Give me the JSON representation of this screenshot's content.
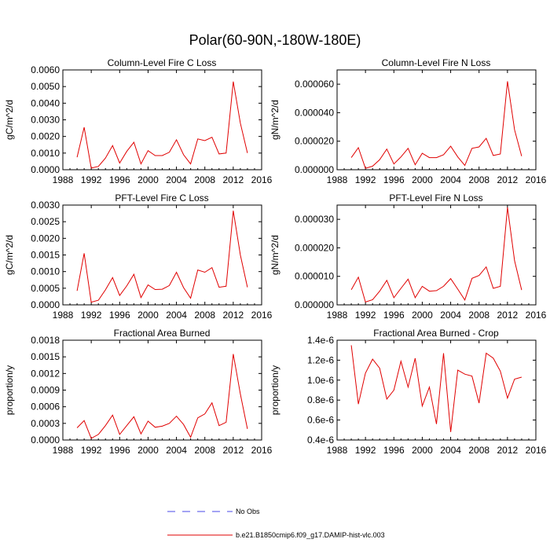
{
  "figure_title": "Polar(60-90N,-180W-180E)",
  "legend": {
    "entries": [
      {
        "label": "No Obs",
        "color": "#4a4ae8",
        "style": "dashed"
      },
      {
        "label": "b.e21.B1850cmip6.f09_g17.DAMIP-hist-vlc.003",
        "color": "#e00000",
        "style": "solid"
      }
    ]
  },
  "line_color": "#e00000",
  "chart_data": [
    {
      "type": "line",
      "title": "Column-Level Fire C Loss",
      "ylabel": "gC/m^2/d",
      "xlabel": "",
      "xlim": [
        1988,
        2016
      ],
      "xticks": [
        "1988",
        "1992",
        "1996",
        "2000",
        "2004",
        "2008",
        "2012",
        "2016"
      ],
      "ylim": [
        0,
        0.006
      ],
      "yticks": [
        "0.0000",
        "0.0010",
        "0.0020",
        "0.0030",
        "0.0040",
        "0.0050",
        "0.0060"
      ],
      "series": [
        {
          "name": "b.e21.B1850cmip6.f09_g17.DAMIP-hist-vlc.003",
          "x": [
            1990,
            1991,
            1992,
            1993,
            1994,
            1995,
            1996,
            1997,
            1998,
            1999,
            2000,
            2001,
            2002,
            2003,
            2004,
            2005,
            2006,
            2007,
            2008,
            2009,
            2010,
            2011,
            2012,
            2013,
            2014
          ],
          "values": [
            0.00075,
            0.00255,
            0.0001,
            0.0002,
            0.0007,
            0.00145,
            0.0004,
            0.0011,
            0.00165,
            0.00035,
            0.00115,
            0.00085,
            0.00085,
            0.00105,
            0.0018,
            0.0009,
            0.00035,
            0.00185,
            0.00175,
            0.00195,
            0.00095,
            0.001,
            0.0053,
            0.0028,
            0.001
          ]
        }
      ]
    },
    {
      "type": "line",
      "title": "Column-Level Fire N Loss",
      "ylabel": "gN/m^2/d",
      "xlabel": "",
      "xlim": [
        1988,
        2016
      ],
      "xticks": [
        "1988",
        "1992",
        "1996",
        "2000",
        "2004",
        "2008",
        "2012",
        "2016"
      ],
      "ylim": [
        0,
        7e-05
      ],
      "yticks": [
        "0.000000",
        "0.000020",
        "0.000040",
        "0.000060"
      ],
      "ytick_values": [
        0,
        2e-05,
        4e-05,
        6e-05
      ],
      "series": [
        {
          "name": "b.e21.B1850cmip6.f09_g17.DAMIP-hist-vlc.003",
          "x": [
            1990,
            1991,
            1992,
            1993,
            1994,
            1995,
            1996,
            1997,
            1998,
            1999,
            2000,
            2001,
            2002,
            2003,
            2004,
            2005,
            2006,
            2007,
            2008,
            2009,
            2010,
            2011,
            2012,
            2013,
            2014
          ],
          "values": [
            8.5e-06,
            1.55e-05,
            1e-06,
            2.5e-06,
            7e-06,
            1.45e-05,
            4e-06,
            9e-06,
            1.5e-05,
            3.5e-06,
            1.15e-05,
            8.5e-06,
            8.5e-06,
            1.05e-05,
            1.65e-05,
            9e-06,
            3e-06,
            1.5e-05,
            1.6e-05,
            2.2e-05,
            1e-05,
            1.1e-05,
            6.2e-05,
            2.8e-05,
            9.5e-06
          ]
        }
      ]
    },
    {
      "type": "line",
      "title": "PFT-Level Fire C Loss",
      "ylabel": "gC/m^2/d",
      "xlabel": "",
      "xlim": [
        1988,
        2016
      ],
      "xticks": [
        "1988",
        "1992",
        "1996",
        "2000",
        "2004",
        "2008",
        "2012",
        "2016"
      ],
      "ylim": [
        0,
        0.003
      ],
      "yticks": [
        "0.0000",
        "0.0005",
        "0.0010",
        "0.0015",
        "0.0020",
        "0.0025",
        "0.0030"
      ],
      "series": [
        {
          "name": "b.e21.B1850cmip6.f09_g17.DAMIP-hist-vlc.003",
          "x": [
            1990,
            1991,
            1992,
            1993,
            1994,
            1995,
            1996,
            1997,
            1998,
            1999,
            2000,
            2001,
            2002,
            2003,
            2004,
            2005,
            2006,
            2007,
            2008,
            2009,
            2010,
            2011,
            2012,
            2013,
            2014
          ],
          "values": [
            0.00042,
            0.00155,
            8e-05,
            0.00014,
            0.00045,
            0.00082,
            0.00028,
            0.00057,
            0.00092,
            0.00022,
            0.0006,
            0.00046,
            0.00047,
            0.00058,
            0.00098,
            0.00052,
            0.0002,
            0.00105,
            0.00098,
            0.00112,
            0.00053,
            0.00056,
            0.00283,
            0.0015,
            0.00053
          ]
        }
      ]
    },
    {
      "type": "line",
      "title": "PFT-Level Fire N Loss",
      "ylabel": "gN/m^2/d",
      "xlabel": "",
      "xlim": [
        1988,
        2016
      ],
      "xticks": [
        "1988",
        "1992",
        "1996",
        "2000",
        "2004",
        "2008",
        "2012",
        "2016"
      ],
      "ylim": [
        0,
        3.5e-05
      ],
      "yticks": [
        "0.000000",
        "0.000010",
        "0.000020",
        "0.000030"
      ],
      "ytick_values": [
        0,
        1e-05,
        2e-05,
        3e-05
      ],
      "series": [
        {
          "name": "b.e21.B1850cmip6.f09_g17.DAMIP-hist-vlc.003",
          "x": [
            1990,
            1991,
            1992,
            1993,
            1994,
            1995,
            1996,
            1997,
            1998,
            1999,
            2000,
            2001,
            2002,
            2003,
            2004,
            2005,
            2006,
            2007,
            2008,
            2009,
            2010,
            2011,
            2012,
            2013,
            2014
          ],
          "values": [
            5.3e-06,
            9.7e-06,
            1e-06,
            1.8e-06,
            4.8e-06,
            8.6e-06,
            2.5e-06,
            5.8e-06,
            9e-06,
            2.5e-06,
            6.5e-06,
            4.8e-06,
            5e-06,
            6.5e-06,
            9.2e-06,
            5.5e-06,
            1.7e-06,
            9.3e-06,
            1.03e-05,
            1.33e-05,
            5.8e-06,
            6.5e-06,
            3.42e-05,
            1.55e-05,
            5.2e-06
          ]
        }
      ]
    },
    {
      "type": "line",
      "title": "Fractional Area Burned",
      "ylabel": "proportion/y",
      "xlabel": "",
      "xlim": [
        1988,
        2016
      ],
      "xticks": [
        "1988",
        "1992",
        "1996",
        "2000",
        "2004",
        "2008",
        "2012",
        "2016"
      ],
      "ylim": [
        0,
        0.0018
      ],
      "yticks": [
        "0.0000",
        "0.0003",
        "0.0006",
        "0.0009",
        "0.0012",
        "0.0015",
        "0.0018"
      ],
      "series": [
        {
          "name": "b.e21.B1850cmip6.f09_g17.DAMIP-hist-vlc.003",
          "x": [
            1990,
            1991,
            1992,
            1993,
            1994,
            1995,
            1996,
            1997,
            1998,
            1999,
            2000,
            2001,
            2002,
            2003,
            2004,
            2005,
            2006,
            2007,
            2008,
            2009,
            2010,
            2011,
            2012,
            2013,
            2014
          ],
          "values": [
            0.00022,
            0.00035,
            3e-05,
            0.0001,
            0.00026,
            0.00045,
            0.0001,
            0.00026,
            0.00042,
            0.00011,
            0.00034,
            0.00023,
            0.00025,
            0.0003,
            0.00043,
            0.00028,
            5e-05,
            0.0004,
            0.00047,
            0.00067,
            0.00026,
            0.00032,
            0.00155,
            0.00083,
            0.0002
          ]
        }
      ]
    },
    {
      "type": "line",
      "title": "Fractional Area Burned - Crop",
      "ylabel": "proportion/y",
      "xlabel": "",
      "xlim": [
        1988,
        2016
      ],
      "xticks": [
        "1988",
        "1992",
        "1996",
        "2000",
        "2004",
        "2008",
        "2012",
        "2016"
      ],
      "ylim": [
        4e-07,
        1.4e-06
      ],
      "yticks": [
        "0.4e-6",
        "0.6e-6",
        "0.8e-6",
        "1.0e-6",
        "1.2e-6",
        "1.4e-6"
      ],
      "ytick_values": [
        4e-07,
        6e-07,
        8e-07,
        1e-06,
        1.2e-06,
        1.4e-06
      ],
      "series": [
        {
          "name": "b.e21.B1850cmip6.f09_g17.DAMIP-hist-vlc.003",
          "x": [
            1990,
            1991,
            1992,
            1993,
            1994,
            1995,
            1996,
            1997,
            1998,
            1999,
            2000,
            2001,
            2002,
            2003,
            2004,
            2005,
            2006,
            2007,
            2008,
            2009,
            2010,
            2011,
            2012,
            2013,
            2014
          ],
          "values": [
            1.35e-06,
            7.6e-07,
            1.07e-06,
            1.21e-06,
            1.12e-06,
            8.1e-07,
            9e-07,
            1.19e-06,
            9.3e-07,
            1.22e-06,
            7.4e-07,
            9.3e-07,
            5.6e-07,
            1.27e-06,
            4.8e-07,
            1.1e-06,
            1.06e-06,
            1.04e-06,
            7.7e-07,
            1.27e-06,
            1.22e-06,
            1.09e-06,
            8.2e-07,
            1.01e-06,
            1.03e-06
          ]
        }
      ]
    }
  ]
}
